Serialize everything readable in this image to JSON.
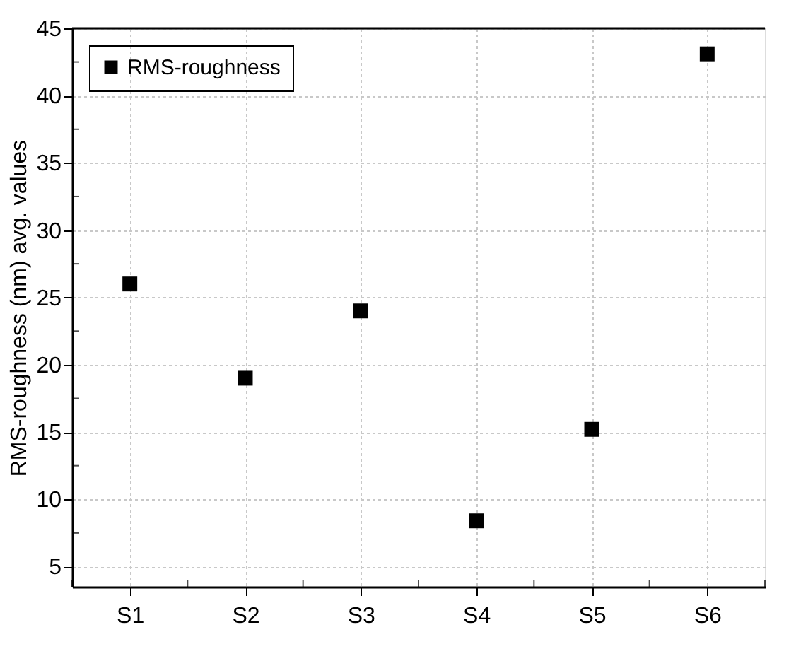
{
  "chart_data": {
    "type": "scatter",
    "ylabel": "RMS-roughness (nm) avg. values",
    "categories": [
      "S1",
      "S2",
      "S3",
      "S4",
      "S5",
      "S6"
    ],
    "series": [
      {
        "name": "RMS-roughness",
        "color": "#000000",
        "values": [
          26,
          19,
          24,
          8.4,
          15.2,
          43.1
        ]
      }
    ],
    "ylim": [
      3.5,
      45
    ],
    "yticks": [
      5,
      10,
      15,
      20,
      25,
      30,
      35,
      40,
      45
    ],
    "grid": true,
    "legend": "top left",
    "marker": "square"
  }
}
